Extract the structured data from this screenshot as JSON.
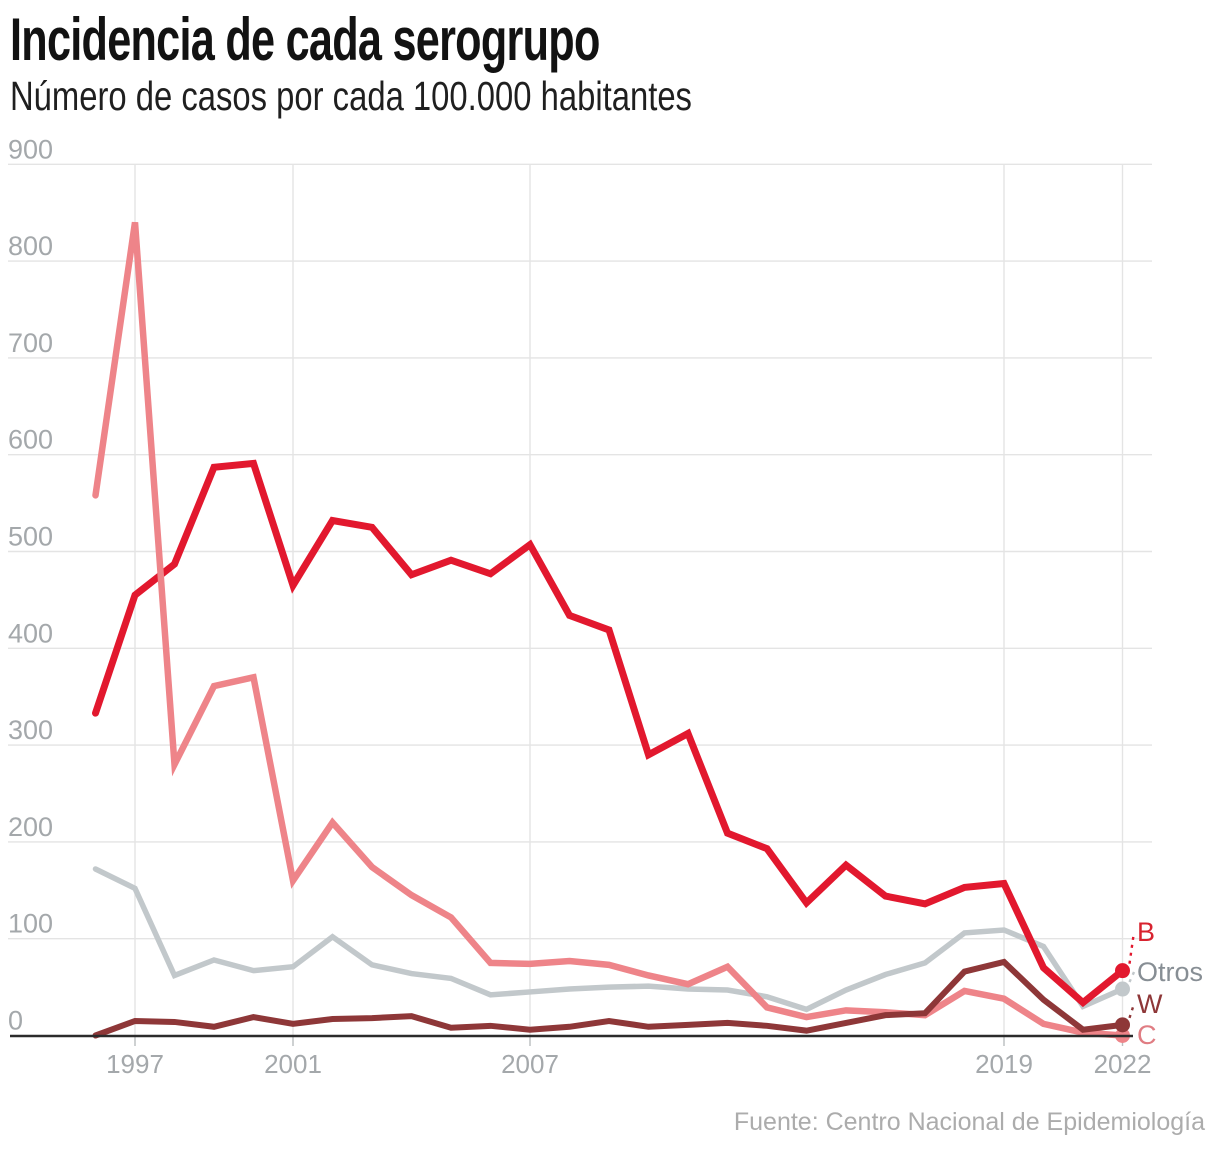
{
  "header": {
    "title": "Incidencia de cada serogrupo",
    "subtitle": "Número de casos por cada 100.000 habitantes"
  },
  "source": "Fuente: Centro Nacional de Epidemiología",
  "colors": {
    "serogroup_b": "#e2182e",
    "serogroup_c": "#ee8489",
    "serogroup_w": "#8e3738",
    "otros": "#c2c8cb",
    "axis_line": "#2b2b2b",
    "gridline": "#e4e4e4",
    "tick_label": "#a4a8ab",
    "source_text": "#acacac"
  },
  "chart_data": {
    "type": "line",
    "title": "Incidencia de cada serogrupo",
    "subtitle": "Número de casos por cada 100.000 habitantes",
    "x": [
      1996,
      1997,
      1998,
      1999,
      2000,
      2001,
      2002,
      2003,
      2004,
      2005,
      2006,
      2007,
      2008,
      2009,
      2010,
      2011,
      2012,
      2013,
      2014,
      2015,
      2016,
      2017,
      2018,
      2019,
      2020,
      2021,
      2022
    ],
    "x_tick_labels": [
      "1997",
      "2001",
      "2007",
      "2019",
      "2022"
    ],
    "x_tick_years": [
      1997,
      2001,
      2007,
      2019,
      2022
    ],
    "y_ticks": [
      0,
      100,
      200,
      300,
      400,
      500,
      600,
      700,
      800,
      900
    ],
    "ylim": [
      0,
      900
    ],
    "grid": true,
    "legend_position": "end-of-line-labels-right",
    "series": [
      {
        "name": "Otros",
        "color": "#c2c8cb",
        "label_color": "#878e94",
        "width": 5.5,
        "values": [
          172,
          152,
          62,
          78,
          67,
          71,
          102,
          73,
          64,
          59,
          42,
          45,
          48,
          50,
          51,
          48,
          47,
          40,
          27,
          47,
          63,
          75,
          106,
          109,
          92,
          30,
          48
        ]
      },
      {
        "name": "B",
        "color": "#e2182e",
        "label_color": "#d8232f",
        "width": 7,
        "values": [
          333,
          455,
          487,
          587,
          591,
          465,
          532,
          525,
          476,
          491,
          477,
          507,
          434,
          419,
          290,
          312,
          209,
          193,
          137,
          176,
          144,
          136,
          153,
          157,
          70,
          34,
          67
        ]
      },
      {
        "name": "C",
        "color": "#ee8489",
        "label_color": "#e07d83",
        "width": 6.5,
        "values": [
          558,
          840,
          280,
          361,
          370,
          160,
          220,
          174,
          145,
          122,
          75,
          74,
          77,
          73,
          62,
          53,
          71,
          29,
          19,
          26,
          24,
          21,
          46,
          38,
          12,
          3,
          0
        ]
      },
      {
        "name": "W",
        "color": "#8e3738",
        "label_color": "#8e3738",
        "width": 6,
        "values": [
          0,
          15,
          14,
          9,
          19,
          12,
          17,
          18,
          20,
          8,
          10,
          6,
          9,
          15,
          9,
          11,
          13,
          10,
          5,
          13,
          21,
          23,
          66,
          76,
          37,
          6,
          11
        ]
      }
    ],
    "end_labels": [
      {
        "series": "B",
        "text": "B",
        "baseline": 941,
        "leader": true
      },
      {
        "series": "Otros",
        "text": "Otros",
        "baseline": 981,
        "leader": true
      },
      {
        "series": "W",
        "text": "W",
        "baseline": 1013,
        "leader": true
      },
      {
        "series": "C",
        "text": "C",
        "baseline": 1044,
        "leader": false
      }
    ]
  }
}
